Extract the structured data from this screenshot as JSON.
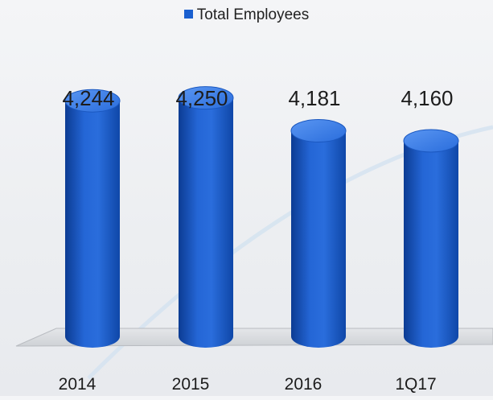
{
  "chart_data": {
    "type": "bar",
    "style": "3d-cylinder",
    "categories": [
      "2014",
      "2015",
      "2016",
      "1Q17"
    ],
    "series": [
      {
        "name": "Total Employees",
        "values": [
          4244,
          4250,
          4181,
          4160
        ]
      }
    ],
    "data_labels": [
      "4,244",
      "4,250",
      "4,181",
      "4,160"
    ],
    "title": "",
    "xlabel": "",
    "ylabel": "",
    "ylim": [
      3750,
      4300
    ],
    "grid": false,
    "legend_position": "top-center"
  },
  "colors": {
    "bar": "#1a5fcf",
    "bar_dark": "#0d3f9a",
    "bar_light": "#4d8ef0",
    "floor": "#d7d9dc",
    "text": "#1c1c1c"
  }
}
